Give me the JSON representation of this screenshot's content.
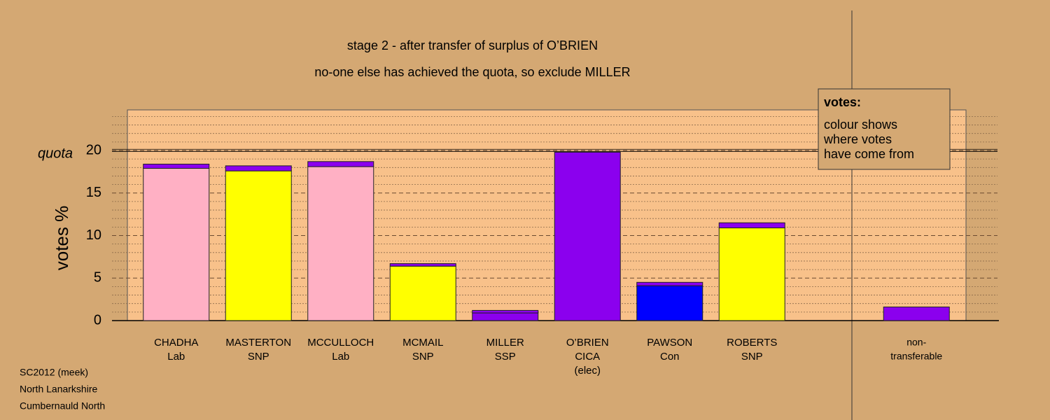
{
  "chart_data": {
    "type": "bar",
    "title": "stage 2 - after transfer of surplus of O’BRIEN",
    "subtitle": "no-one else has achieved the quota, so exclude MILLER",
    "y_label": "votes %",
    "categories": [
      [
        "CHADHA",
        "Lab"
      ],
      [
        "MASTERTON",
        "SNP"
      ],
      [
        "MCCULLOCH",
        "Lab"
      ],
      [
        "MCMAIL",
        "SNP"
      ],
      [
        "MILLER",
        "SSP"
      ],
      [
        "O’BRIEN",
        "CICA",
        "(elec)"
      ],
      [
        "PAWSON",
        "Con"
      ],
      [
        "ROBERTS",
        "SNP"
      ],
      null,
      [
        "non-",
        "transferable"
      ]
    ],
    "series": [
      {
        "colors": [
          "#ffb0c4",
          "#ffff00",
          "#ffb0c4",
          "#ffff00",
          "#8b00ee",
          "#8b00ee",
          "#0000ff",
          "#ffff00",
          null,
          "#8b00ee"
        ],
        "values": [
          17.9,
          17.6,
          18.1,
          6.4,
          0.9,
          19.8,
          4.1,
          10.9,
          null,
          1.6
        ]
      },
      {
        "color": "#8b00ee",
        "values": [
          0.5,
          0.6,
          0.6,
          0.3,
          0.3,
          null,
          0.4,
          0.6,
          null,
          null
        ]
      }
    ],
    "quota": {
      "label": "quota",
      "value": 19.9
    },
    "ylim": [
      0,
      25
    ],
    "yticks": [
      0,
      5,
      10,
      15,
      20
    ],
    "minor_yticks": [
      1,
      2,
      3,
      4,
      6,
      7,
      8,
      9,
      11,
      12,
      13,
      14,
      16,
      17,
      18,
      19,
      21,
      22,
      23,
      24
    ],
    "grid": true,
    "legend_box": {
      "title": "votes:",
      "lines": [
        "colour shows",
        "where votes",
        "have come from"
      ]
    },
    "footer": [
      "SC2012 (meek)",
      "North Lanarkshire",
      "Cumbernauld North"
    ]
  }
}
